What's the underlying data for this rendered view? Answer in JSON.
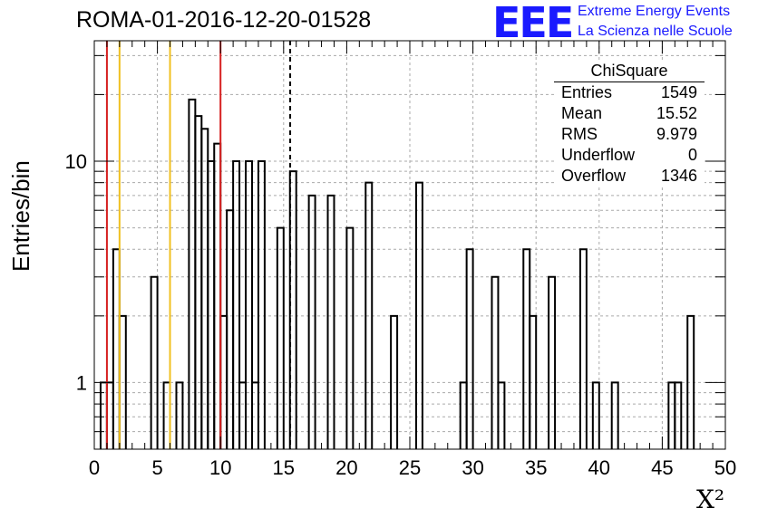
{
  "header": {
    "title": "ROMA-01-2016-12-20-01528",
    "logo_text": "EEE",
    "logo_line1": "Extreme Energy Events",
    "logo_line2": "La Scienza nelle Scuole"
  },
  "stats_box": {
    "name": "ChiSquare",
    "rows": [
      {
        "label": "Entries",
        "value": "1549"
      },
      {
        "label": "Mean",
        "value": "15.52"
      },
      {
        "label": "RMS",
        "value": "9.979"
      },
      {
        "label": "Underflow",
        "value": "0"
      },
      {
        "label": "Overflow",
        "value": "1346"
      }
    ]
  },
  "chart_data": {
    "type": "bar",
    "histogram": "step",
    "title": "ROMA-01-2016-12-20-01528",
    "xlabel": "X²",
    "ylabel": "Entries/bin",
    "xlim": [
      0,
      50
    ],
    "ylim": [
      0.5,
      35
    ],
    "yscale": "log",
    "grid": true,
    "bin_width": 0.5,
    "x_ticks": [
      "0",
      "5",
      "10",
      "15",
      "20",
      "25",
      "30",
      "35",
      "40",
      "45",
      "50"
    ],
    "y_ticks": [
      "1",
      "10"
    ],
    "bins": [
      {
        "x": 0.5,
        "y": 1
      },
      {
        "x": 1.0,
        "y": 1
      },
      {
        "x": 1.5,
        "y": 4
      },
      {
        "x": 2.0,
        "y": 2
      },
      {
        "x": 4.5,
        "y": 3
      },
      {
        "x": 5.5,
        "y": 1
      },
      {
        "x": 6.5,
        "y": 1
      },
      {
        "x": 7.5,
        "y": 19
      },
      {
        "x": 8.0,
        "y": 16
      },
      {
        "x": 8.5,
        "y": 14
      },
      {
        "x": 9.0,
        "y": 10
      },
      {
        "x": 9.5,
        "y": 12
      },
      {
        "x": 10.0,
        "y": 2
      },
      {
        "x": 10.5,
        "y": 6
      },
      {
        "x": 11.0,
        "y": 10
      },
      {
        "x": 11.5,
        "y": 1
      },
      {
        "x": 12.0,
        "y": 10
      },
      {
        "x": 12.5,
        "y": 1
      },
      {
        "x": 13.0,
        "y": 10
      },
      {
        "x": 14.5,
        "y": 5
      },
      {
        "x": 15.5,
        "y": 9
      },
      {
        "x": 17.0,
        "y": 7
      },
      {
        "x": 18.5,
        "y": 7
      },
      {
        "x": 20.0,
        "y": 5
      },
      {
        "x": 21.5,
        "y": 8
      },
      {
        "x": 23.5,
        "y": 2
      },
      {
        "x": 25.5,
        "y": 8
      },
      {
        "x": 29.0,
        "y": 1
      },
      {
        "x": 29.5,
        "y": 4
      },
      {
        "x": 31.5,
        "y": 3
      },
      {
        "x": 32.0,
        "y": 1
      },
      {
        "x": 34.0,
        "y": 4
      },
      {
        "x": 34.5,
        "y": 2
      },
      {
        "x": 36.0,
        "y": 3
      },
      {
        "x": 38.5,
        "y": 4
      },
      {
        "x": 39.5,
        "y": 1
      },
      {
        "x": 41.0,
        "y": 1
      },
      {
        "x": 45.5,
        "y": 1
      },
      {
        "x": 46.0,
        "y": 1
      },
      {
        "x": 47.0,
        "y": 2
      }
    ],
    "reference_lines": [
      {
        "x": 1.0,
        "color": "#d62020",
        "style": "solid"
      },
      {
        "x": 10.0,
        "color": "#d62020",
        "style": "solid"
      },
      {
        "x": 2.0,
        "color": "#f0c020",
        "style": "solid"
      },
      {
        "x": 6.0,
        "color": "#f0c020",
        "style": "solid"
      },
      {
        "x": 15.52,
        "color": "#000000",
        "style": "dashed"
      }
    ]
  }
}
